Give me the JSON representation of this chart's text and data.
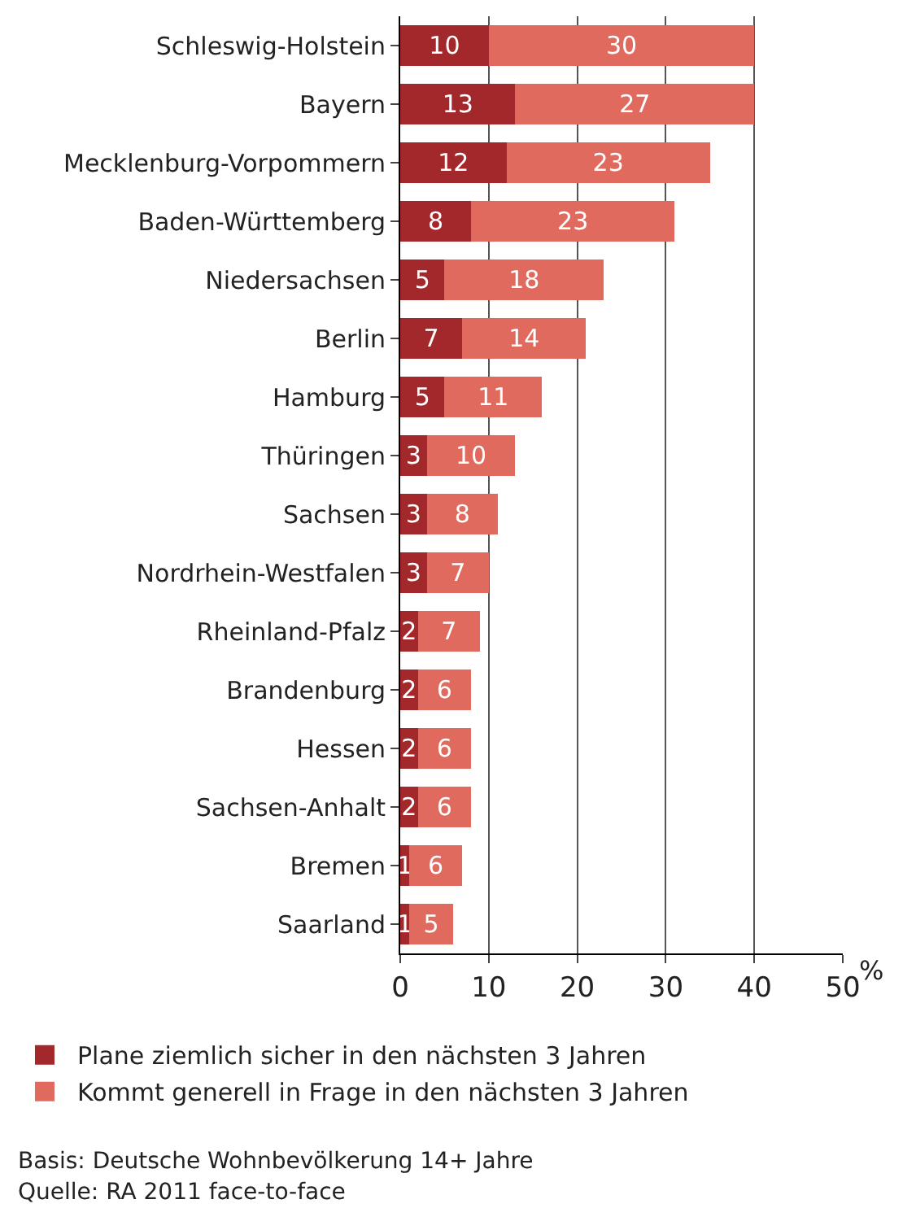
{
  "chart_data": {
    "type": "bar",
    "orientation": "horizontal",
    "stacked": true,
    "categories": [
      "Schleswig-Holstein",
      "Bayern",
      "Mecklenburg-Vorpommern",
      "Baden-Württemberg",
      "Niedersachsen",
      "Berlin",
      "Hamburg",
      "Thüringen",
      "Sachsen",
      "Nordrhein-Westfalen",
      "Rheinland-Pfalz",
      "Brandenburg",
      "Hessen",
      "Sachsen-Anhalt",
      "Bremen",
      "Saarland"
    ],
    "series": [
      {
        "name": "Plane ziemlich sicher in den nächsten 3 Jahren",
        "color": "#a3282b",
        "values": [
          10,
          13,
          12,
          8,
          5,
          7,
          5,
          3,
          3,
          3,
          2,
          2,
          2,
          2,
          1,
          1
        ]
      },
      {
        "name": "Kommt generell in Frage in den nächsten 3 Jahren",
        "color": "#e06a5e",
        "values": [
          30,
          27,
          23,
          23,
          18,
          14,
          11,
          10,
          8,
          7,
          7,
          6,
          6,
          6,
          6,
          5
        ]
      }
    ],
    "xlabel": "%",
    "xlim": [
      0,
      50
    ],
    "xticks": [
      0,
      10,
      20,
      30,
      40,
      50
    ],
    "grid": "x",
    "legend": "bottom",
    "data_labels": true,
    "annotations": [
      "Basis: Deutsche Wohnbevölkerung 14+ Jahre",
      "Quelle: RA 2011 face-to-face"
    ]
  }
}
